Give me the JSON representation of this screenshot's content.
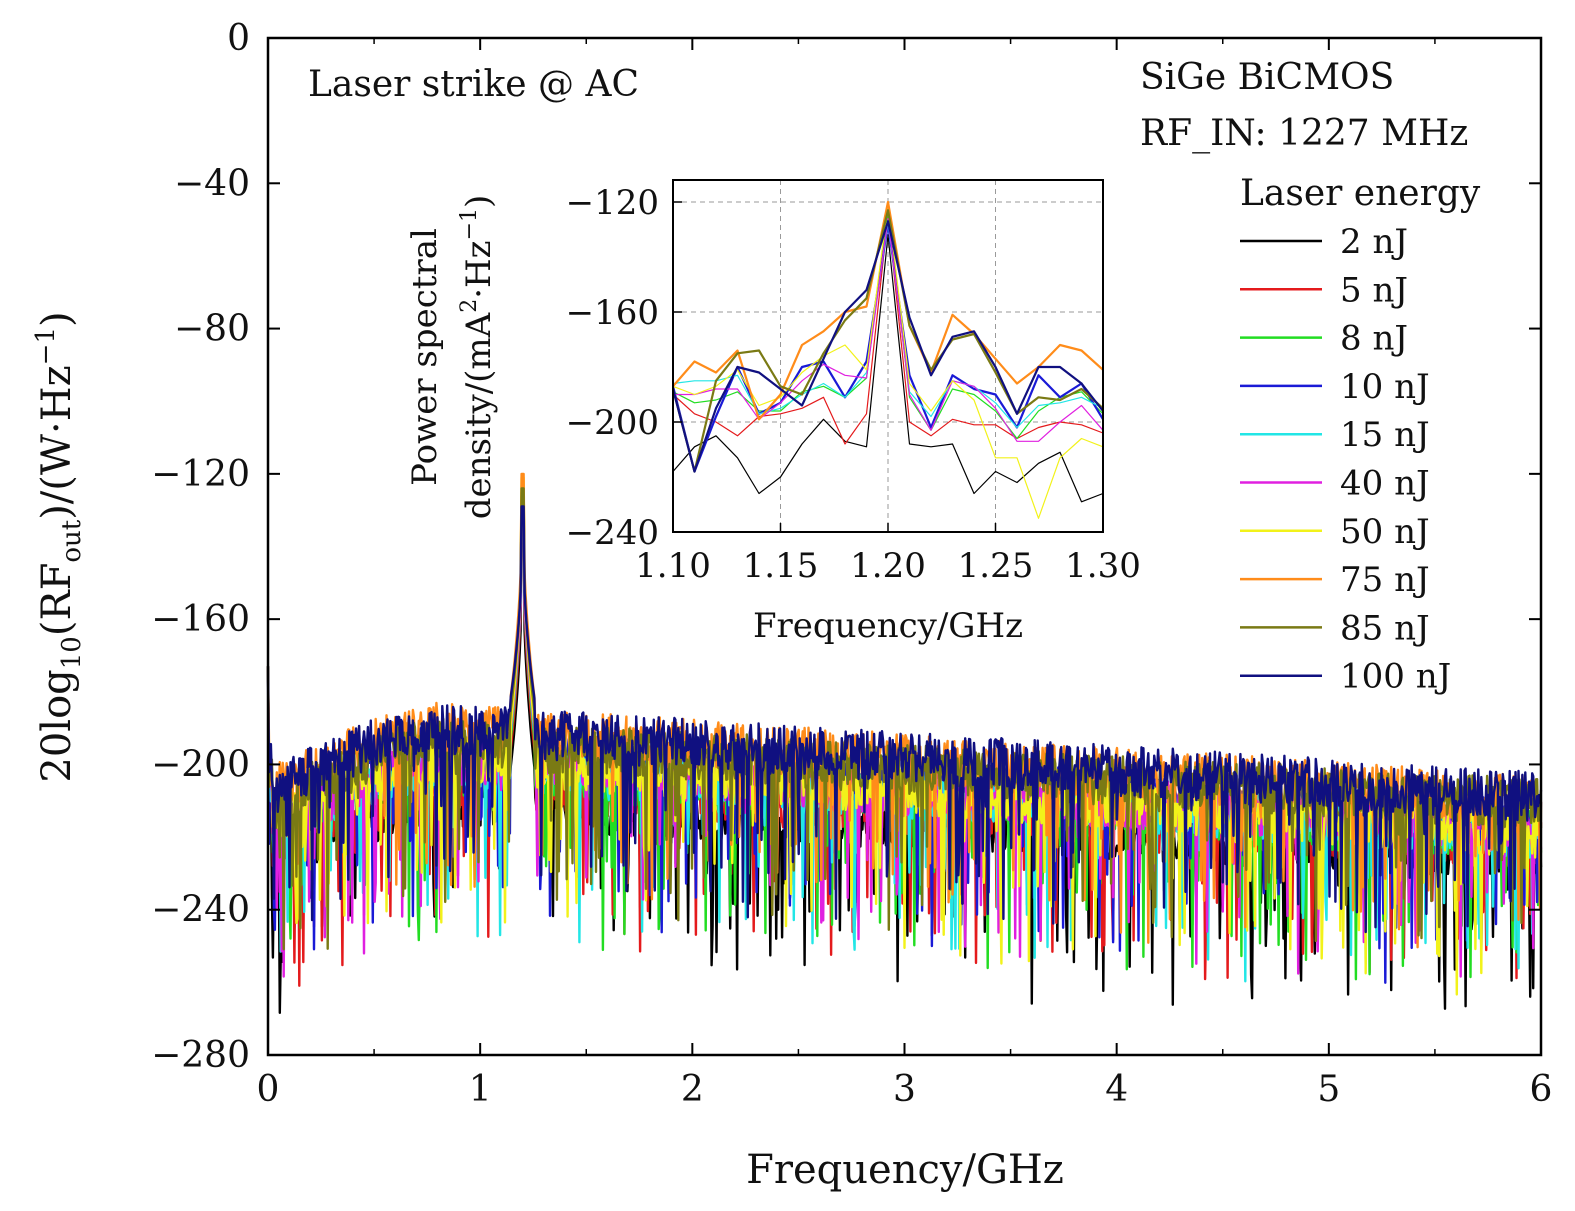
{
  "chart_data": {
    "type": "line",
    "ylabel_parts": {
      "prefix": "20log",
      "sub1": "10",
      "mid": "(RF",
      "sub2": "out",
      "mid2": ")/(W·Hz",
      "sup": "−1",
      "suffix": ")"
    },
    "xlabel": "Frequency/GHz",
    "xlim": [
      0,
      6
    ],
    "ylim": [
      -280,
      0
    ],
    "xticks": [
      0,
      1,
      2,
      3,
      4,
      5,
      6
    ],
    "xtick_labels": [
      "0",
      "1",
      "2",
      "3",
      "4",
      "5",
      "6"
    ],
    "yticks": [
      0,
      -40,
      -80,
      -120,
      -160,
      -200,
      -240,
      -280
    ],
    "ytick_labels": [
      "0",
      "−40",
      "−80",
      "−120",
      "−160",
      "−200",
      "−240",
      "−280"
    ],
    "annotation_left": "Laser strike @ AC",
    "annotation_right_1": "SiGe BiCMOS",
    "annotation_right_2": "RF_IN: 1227 MHz",
    "legend_title": "Laser energy",
    "peak_frequency": 1.2,
    "series": [
      {
        "name": "2 nJ",
        "color": "#000000",
        "peak": -133,
        "floor_near": -210,
        "floor_far": -225
      },
      {
        "name": "5 nJ",
        "color": "#e41a1c",
        "peak": -127,
        "floor_near": -205,
        "floor_far": -222
      },
      {
        "name": "8 nJ",
        "color": "#22dd22",
        "peak": -125,
        "floor_near": -202,
        "floor_far": -220
      },
      {
        "name": "10 nJ",
        "color": "#1a1ad6",
        "peak": -128,
        "floor_near": -196,
        "floor_far": -217
      },
      {
        "name": "15 nJ",
        "color": "#22e6e6",
        "peak": -126,
        "floor_near": -200,
        "floor_far": -219
      },
      {
        "name": "40 nJ",
        "color": "#e020e0",
        "peak": -126,
        "floor_near": -199,
        "floor_far": -218
      },
      {
        "name": "50 nJ",
        "color": "#f2f21a",
        "peak": -121,
        "floor_near": -198,
        "floor_far": -219
      },
      {
        "name": "75 nJ",
        "color": "#ff8c1a",
        "peak": -120,
        "floor_near": -190,
        "floor_far": -210
      },
      {
        "name": "85 nJ",
        "color": "#7a7a14",
        "peak": -124,
        "floor_near": -194,
        "floor_far": -211
      },
      {
        "name": "100 nJ",
        "color": "#101080",
        "peak": -129,
        "floor_near": -190,
        "floor_far": -209
      }
    ],
    "inset": {
      "type": "line",
      "xlabel": "Frequency/GHz",
      "ylabel_line1": "Power spectral",
      "ylabel_line2_parts": {
        "prefix": "density/(mA",
        "sup1": "2",
        "mid": "·Hz",
        "sup2": "−1",
        "suffix": ")"
      },
      "xlim": [
        1.1,
        1.3
      ],
      "ylim": [
        -240,
        -112
      ],
      "xticks": [
        1.1,
        1.15,
        1.2,
        1.25,
        1.3
      ],
      "xtick_labels": [
        "1.10",
        "1.15",
        "1.20",
        "1.25",
        "1.30"
      ],
      "yticks": [
        -120,
        -160,
        -200,
        -240
      ],
      "ytick_labels": [
        "−120",
        "−160",
        "−200",
        "−240"
      ],
      "grid": true,
      "x": [
        1.1,
        1.11,
        1.12,
        1.13,
        1.14,
        1.15,
        1.16,
        1.17,
        1.18,
        1.19,
        1.2,
        1.21,
        1.22,
        1.23,
        1.24,
        1.25,
        1.26,
        1.27,
        1.28,
        1.29,
        1.3
      ],
      "series": [
        {
          "name": "2 nJ",
          "values": [
            -218,
            -209,
            -205,
            -213,
            -226,
            -220,
            -208,
            -199,
            -207,
            -209,
            -132,
            -208,
            -209,
            -208,
            -226,
            -218,
            -222,
            -215,
            -211,
            -229,
            -226
          ]
        },
        {
          "name": "5 nJ",
          "values": [
            -190,
            -197,
            -200,
            -205,
            -198,
            -197,
            -195,
            -191,
            -208,
            -197,
            -125,
            -200,
            -205,
            -199,
            -201,
            -201,
            -206,
            -202,
            -200,
            -201,
            -204
          ]
        },
        {
          "name": "8 nJ",
          "values": [
            -189,
            -193,
            -192,
            -189,
            -196,
            -196,
            -189,
            -187,
            -191,
            -184,
            -124,
            -191,
            -203,
            -188,
            -190,
            -196,
            -206,
            -196,
            -191,
            -189,
            -197
          ]
        },
        {
          "name": "10 nJ",
          "values": [
            -187,
            -218,
            -198,
            -180,
            -197,
            -193,
            -180,
            -178,
            -191,
            -178,
            -128,
            -183,
            -202,
            -183,
            -188,
            -190,
            -202,
            -183,
            -191,
            -186,
            -199
          ]
        },
        {
          "name": "15 nJ",
          "values": [
            -186,
            -185,
            -185,
            -183,
            -197,
            -195,
            -190,
            -186,
            -191,
            -182,
            -127,
            -189,
            -198,
            -185,
            -187,
            -193,
            -202,
            -194,
            -193,
            -191,
            -195
          ]
        },
        {
          "name": "40 nJ",
          "values": [
            -190,
            -190,
            -188,
            -188,
            -199,
            -193,
            -185,
            -179,
            -183,
            -184,
            -126,
            -190,
            -203,
            -185,
            -187,
            -195,
            -207,
            -207,
            -200,
            -194,
            -203
          ]
        },
        {
          "name": "50 nJ",
          "values": [
            -187,
            -190,
            -187,
            -181,
            -194,
            -191,
            -182,
            -176,
            -172,
            -181,
            -121,
            -186,
            -196,
            -185,
            -192,
            -213,
            -213,
            -235,
            -213,
            -206,
            -209
          ]
        },
        {
          "name": "75 nJ",
          "values": [
            -187,
            -178,
            -182,
            -174,
            -199,
            -190,
            -172,
            -167,
            -160,
            -158,
            -120,
            -165,
            -182,
            -161,
            -168,
            -177,
            -186,
            -180,
            -172,
            -174,
            -181
          ]
        },
        {
          "name": "85 nJ",
          "values": [
            -188,
            -218,
            -185,
            -175,
            -174,
            -187,
            -190,
            -175,
            -163,
            -155,
            -123,
            -165,
            -181,
            -170,
            -168,
            -182,
            -197,
            -191,
            -192,
            -188,
            -195
          ]
        },
        {
          "name": "100 nJ",
          "values": [
            -188,
            -218,
            -195,
            -180,
            -182,
            -188,
            -194,
            -177,
            -160,
            -152,
            -127,
            -162,
            -183,
            -169,
            -167,
            -180,
            -197,
            -180,
            -180,
            -186,
            -196
          ]
        }
      ]
    }
  }
}
